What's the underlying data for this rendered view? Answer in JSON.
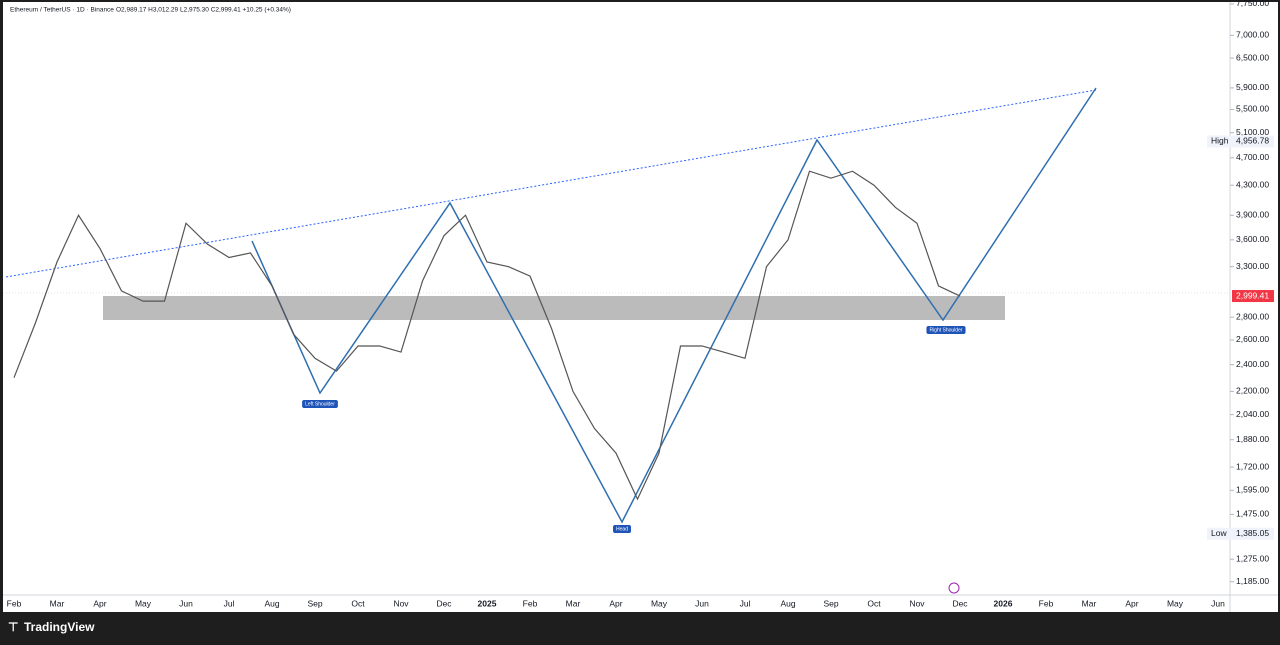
{
  "chart_data": {
    "type": "line",
    "title": "Ethereum / TetherUS · 1D · Binance",
    "ohlc_text": "O2,989.17 H3,012.29 L2,975.30 C2,999.41 +10.25 (+0.34%)",
    "brand": "TradingView",
    "log_scale": true,
    "grid": false,
    "categories": [
      "Feb",
      null,
      "Mar",
      null,
      "Apr",
      null,
      "May",
      null,
      "Jun",
      null,
      "Jul",
      null,
      "Aug",
      null,
      "Sep",
      null,
      "Oct",
      null,
      "Nov",
      null,
      "Dec",
      null,
      "2025",
      null,
      "Feb",
      null,
      "Mar",
      null,
      "Apr",
      null,
      "May",
      null,
      "Jun",
      null,
      "Jul",
      null,
      "Aug",
      null,
      "Sep",
      null,
      "Oct",
      null,
      "Nov",
      null,
      "Dec",
      null,
      "2026",
      null,
      "Feb",
      null,
      "Mar",
      null,
      "Apr",
      null,
      "May",
      null,
      "Jun"
    ],
    "series": [
      {
        "name": "Ethereum / TetherUS",
        "color": "#555555",
        "values": [
          2300,
          2750,
          3350,
          3900,
          3500,
          3050,
          2950,
          2950,
          3800,
          3550,
          3400,
          3450,
          3100,
          2650,
          2450,
          2350,
          2550,
          2550,
          2500,
          3150,
          3650,
          3900,
          3350,
          3300,
          3200,
          2700,
          2200,
          1950,
          1800,
          1550,
          1800,
          2550,
          2550,
          2500,
          2450,
          3300,
          3600,
          4500,
          4400,
          4500,
          4300,
          4000,
          3800,
          3100,
          2999.41,
          null,
          null,
          null,
          null,
          null,
          null,
          null,
          null,
          null,
          null,
          null,
          null
        ],
        "value_labels": [
          null,
          null,
          null,
          null,
          null,
          null,
          null,
          null,
          null,
          null,
          null,
          null,
          null,
          null,
          null,
          null,
          null,
          null,
          null,
          null,
          null,
          null,
          null,
          null,
          null,
          null,
          null,
          null,
          null,
          null,
          null,
          null,
          null,
          null,
          null,
          null,
          null,
          null,
          null,
          null,
          null,
          null,
          null,
          null,
          "2,999.41",
          null,
          null,
          null,
          null,
          null,
          null,
          null,
          null,
          null,
          null,
          null,
          null
        ]
      }
    ],
    "ylim": [
      1135,
      7800
    ],
    "yticks": [
      {
        "value": 1185,
        "label": "1,185.00"
      },
      {
        "value": 1275,
        "label": "1,275.00"
      },
      {
        "value": 1475,
        "label": "1,475.00"
      },
      {
        "value": 1595,
        "label": "1,595.00"
      },
      {
        "value": 1720,
        "label": "1,720.00"
      },
      {
        "value": 1880,
        "label": "1,880.00"
      },
      {
        "value": 2040,
        "label": "2,040.00"
      },
      {
        "value": 2200,
        "label": "2,200.00"
      },
      {
        "value": 2400,
        "label": "2,400.00"
      },
      {
        "value": 2600,
        "label": "2,600.00"
      },
      {
        "value": 2800,
        "label": "2,800.00"
      },
      {
        "value": 3300,
        "label": "3,300.00"
      },
      {
        "value": 3600,
        "label": "3,600.00"
      },
      {
        "value": 3900,
        "label": "3,900.00"
      },
      {
        "value": 4300,
        "label": "4,300.00"
      },
      {
        "value": 4700,
        "label": "4,700.00"
      },
      {
        "value": 5100,
        "label": "5,100.00"
      },
      {
        "value": 5500,
        "label": "5,500.00"
      },
      {
        "value": 5900,
        "label": "5,900.00"
      },
      {
        "value": 6500,
        "label": "6,500.00"
      },
      {
        "value": 7000,
        "label": "7,000.00"
      },
      {
        "value": 7750,
        "label": "7,750.00"
      }
    ],
    "markers": [
      {
        "label": "High",
        "value": 4956.78,
        "value_label": "4,956.78"
      },
      {
        "label": "Low",
        "value": 1385.05,
        "value_label": "1,385.05"
      }
    ],
    "annotations": [
      "Left Shoulder",
      "Head",
      "Right Shoulder"
    ]
  }
}
